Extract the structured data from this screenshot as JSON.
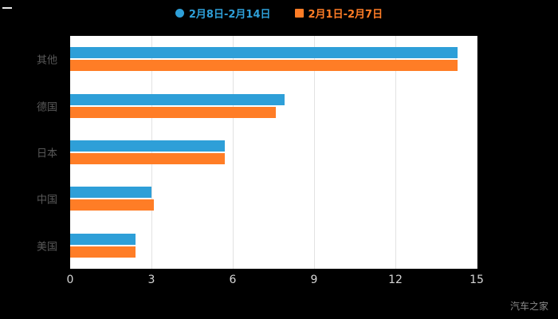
{
  "legend": {
    "items": [
      {
        "label": "2月8日-2月14日",
        "color": "#2e9fd8",
        "marker": "circle"
      },
      {
        "label": "2月1日-2月7日",
        "color": "#ff7d26",
        "marker": "square"
      }
    ]
  },
  "chart_data": {
    "type": "bar",
    "orientation": "horizontal",
    "title": "",
    "categories": [
      "其他",
      "德国",
      "日本",
      "中国",
      "美国"
    ],
    "series": [
      {
        "name": "2月8日-2月14日",
        "color": "#2e9fd8",
        "values": [
          14.3,
          7.9,
          5.7,
          3.0,
          2.4
        ]
      },
      {
        "name": "2月1日-2月7日",
        "color": "#ff7d26",
        "values": [
          14.3,
          7.6,
          5.7,
          3.1,
          2.4
        ]
      }
    ],
    "xlim": [
      0,
      15
    ],
    "xticks": [
      0,
      3,
      6,
      9,
      12,
      15
    ],
    "grid": true,
    "legend_position": "top",
    "plot_background": "#ffffff",
    "page_background": "#000000"
  },
  "watermark": "汽车之家"
}
